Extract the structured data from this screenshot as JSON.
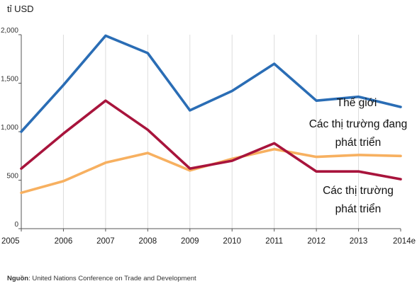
{
  "chart_data": {
    "type": "line",
    "ylabel": "tỉ USD",
    "xlabel": "",
    "categories": [
      "2005",
      "2006",
      "2007",
      "2008",
      "2009",
      "2010",
      "2011",
      "2012",
      "2013",
      "2014e"
    ],
    "ylim": [
      0,
      2000
    ],
    "yticks": [
      0,
      500,
      1000,
      1500,
      2000
    ],
    "ytick_labels": [
      "0",
      "500",
      "1,000",
      "1,500",
      "2,000"
    ],
    "grid": "vertical",
    "series": [
      {
        "name": "Thế giới",
        "color": "#2a6db5",
        "values": [
          1000,
          1480,
          1990,
          1810,
          1220,
          1420,
          1700,
          1320,
          1360,
          1255
        ]
      },
      {
        "name": "Các thị trường phát triển",
        "color": "#a8143c",
        "values": [
          620,
          980,
          1320,
          1020,
          620,
          700,
          880,
          590,
          590,
          510
        ]
      },
      {
        "name": "Các thị trường đang phát triển",
        "color": "#f7b060",
        "values": [
          370,
          490,
          680,
          780,
          600,
          720,
          820,
          740,
          760,
          750
        ]
      }
    ],
    "annotations": [
      {
        "series": 0,
        "lines": [
          "Thế giới"
        ]
      },
      {
        "series": 2,
        "lines": [
          "Các thị trường đang",
          "phát triển"
        ]
      },
      {
        "series": 1,
        "lines": [
          "Các thị trường",
          "phát triển"
        ]
      }
    ],
    "source": {
      "label": "Nguồn",
      "text": ": United Nations Conference on Trade and Development"
    }
  }
}
